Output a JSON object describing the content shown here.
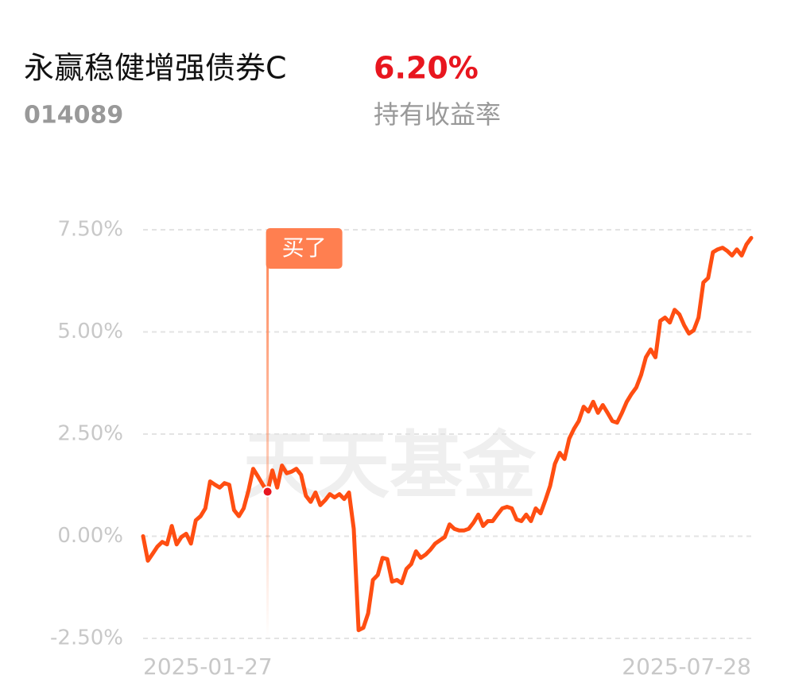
{
  "header": {
    "fund_name": "永赢稳健增强债券C",
    "return": "6.20%",
    "code": "014089",
    "return_label": "持有收益率",
    "watermark": "天天基金"
  },
  "chart_data": {
    "type": "line",
    "color": "#ff4e12",
    "categories": [
      "2025-01-27",
      null,
      null,
      null,
      null,
      null,
      null,
      null,
      null,
      null,
      null,
      null,
      null,
      null,
      null,
      null,
      null,
      null,
      null,
      null,
      null,
      null,
      null,
      null,
      null,
      null,
      null,
      null,
      null,
      null,
      null,
      null,
      null,
      null,
      null,
      null,
      null,
      null,
      null,
      null,
      null,
      null,
      null,
      null,
      null,
      null,
      null,
      null,
      null,
      null,
      null,
      null,
      null,
      null,
      null,
      null,
      null,
      null,
      null,
      null,
      null,
      null,
      null,
      null,
      null,
      null,
      null,
      null,
      null,
      null,
      null,
      null,
      null,
      null,
      null,
      null,
      null,
      null,
      null,
      null,
      null,
      null,
      null,
      null,
      null,
      null,
      null,
      null,
      null,
      null,
      null,
      null,
      null,
      null,
      null,
      null,
      null,
      null,
      null,
      null,
      null,
      null,
      null,
      null,
      null,
      null,
      null,
      null,
      null,
      null,
      null,
      null,
      null,
      null,
      null,
      null,
      null,
      null,
      null,
      null,
      null,
      null,
      null,
      null,
      null,
      null,
      null,
      "2025-07-28"
    ],
    "values": [
      0.0,
      -0.6,
      -0.43,
      -0.25,
      -0.14,
      -0.2,
      0.25,
      -0.2,
      -0.02,
      0.06,
      -0.18,
      0.39,
      0.49,
      0.68,
      1.34,
      1.26,
      1.19,
      1.3,
      1.26,
      0.64,
      0.49,
      0.68,
      1.11,
      1.65,
      1.46,
      1.26,
      1.09,
      1.61,
      1.19,
      1.73,
      1.54,
      1.58,
      1.65,
      1.5,
      0.99,
      0.84,
      1.07,
      0.76,
      0.88,
      1.03,
      0.95,
      1.03,
      0.91,
      1.07,
      0.18,
      -2.3,
      -2.24,
      -1.89,
      -1.07,
      -0.95,
      -0.53,
      -0.56,
      -1.11,
      -1.07,
      -1.15,
      -0.8,
      -0.68,
      -0.37,
      -0.53,
      -0.45,
      -0.33,
      -0.18,
      -0.1,
      -0.02,
      0.29,
      0.18,
      0.14,
      0.14,
      0.18,
      0.33,
      0.53,
      0.25,
      0.37,
      0.37,
      0.53,
      0.68,
      0.72,
      0.68,
      0.41,
      0.37,
      0.53,
      0.37,
      0.68,
      0.56,
      0.88,
      1.23,
      1.77,
      2.04,
      1.89,
      2.39,
      2.63,
      2.82,
      3.17,
      3.05,
      3.29,
      3.02,
      3.21,
      3.02,
      2.82,
      2.78,
      3.02,
      3.29,
      3.48,
      3.64,
      3.95,
      4.38,
      4.57,
      4.38,
      5.27,
      5.35,
      5.23,
      5.54,
      5.43,
      5.16,
      4.96,
      5.04,
      5.35,
      6.21,
      6.32,
      6.95,
      7.02,
      7.06,
      6.98,
      6.87,
      7.02,
      6.87,
      7.14,
      7.3
    ],
    "ylim": [
      -2.5,
      7.5
    ],
    "yticks": [
      {
        "value": -2.5,
        "label": "-2.50%"
      },
      {
        "value": 0,
        "label": "0.00%"
      },
      {
        "value": 2.5,
        "label": "2.50%"
      },
      {
        "value": 5,
        "label": "5.00%"
      },
      {
        "value": 7.5,
        "label": "7.50%"
      }
    ],
    "grid": true,
    "annotation": {
      "text": "买了",
      "index": 26
    }
  }
}
